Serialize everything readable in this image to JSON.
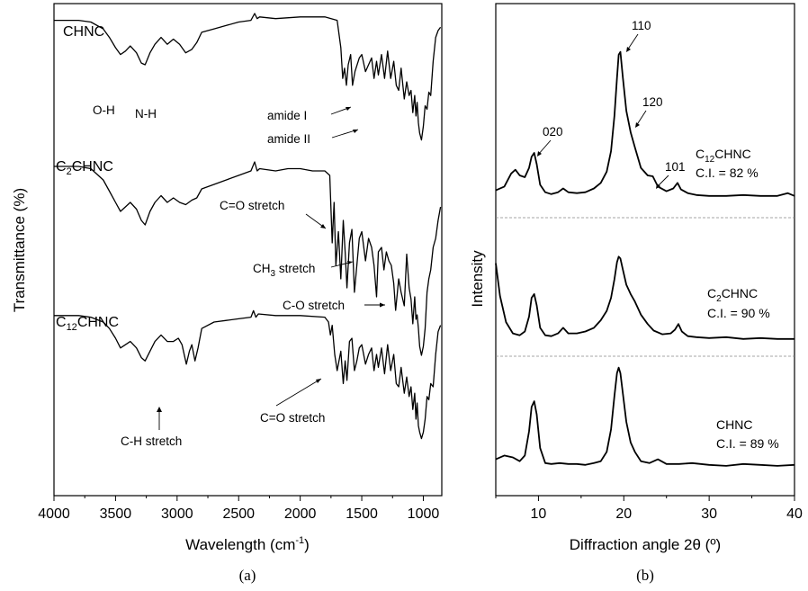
{
  "figure": {
    "panel_a": "(a)",
    "panel_b": "(b)"
  },
  "chart_data": [
    {
      "type": "line",
      "panel": "(a)",
      "xlabel": "Wavelength (cm",
      "xlabel_sup": "-1",
      "xlabel_end": ")",
      "ylabel": "Transmittance (%)",
      "xlim": [
        4000,
        850
      ],
      "x_reversed": true,
      "xticks": [
        "4000",
        "3500",
        "3000",
        "2500",
        "2000",
        "1500",
        "1000"
      ],
      "xtick_values": [
        4000,
        3500,
        3000,
        2500,
        2000,
        1500,
        1000
      ],
      "y_ticks_shown": false,
      "series": [
        {
          "name": "CHNC",
          "name_main": "CHNC",
          "name_sub": "",
          "name_rest": "",
          "x": [
            4000,
            3800,
            3700,
            3600,
            3550,
            3500,
            3460,
            3420,
            3380,
            3330,
            3290,
            3260,
            3220,
            3180,
            3130,
            3080,
            3030,
            2980,
            2930,
            2880,
            2840,
            2800,
            2700,
            2600,
            2500,
            2400,
            2370,
            2350,
            2330,
            2200,
            2000,
            1800,
            1700,
            1670,
            1655,
            1640,
            1625,
            1610,
            1590,
            1575,
            1555,
            1520,
            1500,
            1470,
            1445,
            1420,
            1400,
            1380,
            1365,
            1340,
            1315,
            1290,
            1265,
            1240,
            1220,
            1200,
            1180,
            1155,
            1135,
            1115,
            1100,
            1085,
            1070,
            1060,
            1050,
            1040,
            1030,
            1015,
            1000,
            985,
            970,
            955,
            940,
            920,
            900,
            880,
            860
          ],
          "y": [
            96,
            96,
            95,
            91,
            86,
            80,
            76,
            78,
            81,
            77,
            71,
            70,
            77,
            82,
            86,
            82,
            85,
            82,
            77,
            79,
            83,
            89,
            91,
            93,
            95,
            96,
            100,
            97,
            98,
            97,
            98,
            98,
            96,
            80,
            62,
            68,
            58,
            70,
            76,
            58,
            66,
            74,
            76,
            66,
            70,
            74,
            62,
            72,
            64,
            76,
            62,
            78,
            62,
            72,
            58,
            55,
            68,
            50,
            60,
            52,
            55,
            42,
            52,
            40,
            48,
            36,
            30,
            26,
            34,
            46,
            44,
            54,
            52,
            72,
            86,
            90,
            92
          ]
        },
        {
          "name": "C2CHNC",
          "name_main": "C",
          "name_sub": "2",
          "name_rest": "CHNC",
          "x": [
            4000,
            3800,
            3700,
            3600,
            3550,
            3500,
            3460,
            3420,
            3380,
            3330,
            3290,
            3260,
            3220,
            3180,
            3130,
            3080,
            3030,
            2980,
            2930,
            2880,
            2840,
            2800,
            2700,
            2600,
            2500,
            2400,
            2370,
            2350,
            2330,
            2200,
            2100,
            2000,
            1900,
            1800,
            1760,
            1740,
            1725,
            1710,
            1690,
            1670,
            1650,
            1635,
            1620,
            1600,
            1580,
            1560,
            1540,
            1520,
            1500,
            1470,
            1445,
            1420,
            1400,
            1380,
            1365,
            1340,
            1320,
            1300,
            1280,
            1260,
            1240,
            1225,
            1200,
            1180,
            1155,
            1135,
            1115,
            1100,
            1085,
            1070,
            1060,
            1050,
            1040,
            1030,
            1015,
            1000,
            985,
            970,
            955,
            940,
            920,
            900,
            880,
            860
          ],
          "y": [
            94,
            94,
            93,
            88,
            83,
            78,
            74,
            76,
            78,
            75,
            70,
            68,
            74,
            78,
            81,
            78,
            80,
            78,
            77,
            79,
            80,
            84,
            86,
            88,
            90,
            92,
            96,
            92,
            93,
            92,
            93,
            93,
            92,
            92,
            90,
            60,
            78,
            50,
            65,
            44,
            70,
            56,
            40,
            60,
            66,
            38,
            50,
            62,
            65,
            52,
            62,
            58,
            50,
            36,
            56,
            58,
            48,
            56,
            52,
            50,
            42,
            30,
            44,
            38,
            32,
            55,
            40,
            35,
            24,
            36,
            26,
            28,
            22,
            14,
            10,
            14,
            22,
            38,
            44,
            48,
            58,
            62,
            70,
            76
          ]
        },
        {
          "name": "C12CHNC",
          "name_main": "C",
          "name_sub": "12",
          "name_rest": "CHNC",
          "x": [
            4000,
            3800,
            3700,
            3600,
            3550,
            3500,
            3460,
            3420,
            3380,
            3330,
            3290,
            3260,
            3220,
            3180,
            3130,
            3080,
            3030,
            2990,
            2960,
            2925,
            2900,
            2880,
            2855,
            2830,
            2800,
            2700,
            2600,
            2500,
            2400,
            2380,
            2360,
            2340,
            2200,
            2000,
            1800,
            1770,
            1755,
            1740,
            1720,
            1700,
            1670,
            1650,
            1635,
            1620,
            1600,
            1580,
            1560,
            1540,
            1520,
            1500,
            1470,
            1445,
            1420,
            1400,
            1380,
            1365,
            1340,
            1315,
            1290,
            1265,
            1240,
            1220,
            1200,
            1180,
            1155,
            1135,
            1115,
            1100,
            1085,
            1070,
            1060,
            1050,
            1040,
            1030,
            1015,
            1000,
            985,
            970,
            955,
            940,
            920,
            900,
            880,
            860
          ],
          "y": [
            94,
            94,
            93,
            90,
            86,
            80,
            74,
            76,
            78,
            74,
            68,
            66,
            72,
            78,
            82,
            78,
            78,
            80,
            76,
            64,
            72,
            76,
            66,
            74,
            86,
            90,
            91,
            92,
            93,
            97,
            93,
            95,
            94,
            94,
            93,
            90,
            82,
            88,
            70,
            60,
            72,
            52,
            66,
            54,
            78,
            80,
            60,
            66,
            74,
            76,
            64,
            70,
            74,
            60,
            70,
            62,
            74,
            58,
            76,
            60,
            70,
            52,
            50,
            62,
            46,
            56,
            44,
            50,
            36,
            46,
            30,
            40,
            26,
            22,
            18,
            22,
            30,
            44,
            42,
            52,
            50,
            70,
            84,
            88
          ]
        }
      ],
      "peak_labels": [
        "O-H",
        "N-H",
        "amide I",
        "amide II",
        "C=O stretch",
        "CH",
        "3",
        " stretch",
        "C-O stretch",
        "C=O stretch",
        "C-H stretch"
      ]
    },
    {
      "type": "line",
      "panel": "(b)",
      "xlabel": "Diffraction angle 2θ (º)",
      "ylabel": "Intensity",
      "xlim": [
        5,
        40
      ],
      "xticks": [
        "10",
        "20",
        "30",
        "40"
      ],
      "xtick_values": [
        10,
        20,
        30,
        40
      ],
      "y_ticks_shown": false,
      "reflections": [
        "020",
        "110",
        "120",
        "101"
      ],
      "series": [
        {
          "name": "C12CHNC",
          "name_main": "C",
          "name_sub": "12",
          "name_rest": "CHNC",
          "ci_label": "C.I. = 82 %",
          "x": [
            5,
            6,
            6.8,
            7.3,
            7.8,
            8.4,
            8.9,
            9.2,
            9.5,
            9.8,
            10.2,
            10.8,
            11.5,
            12.3,
            12.9,
            13.5,
            14.5,
            15.5,
            16.5,
            17.3,
            18.0,
            18.5,
            18.9,
            19.2,
            19.4,
            19.6,
            19.9,
            20.3,
            20.8,
            21.3,
            22.0,
            22.8,
            23.4,
            24.0,
            25.0,
            25.8,
            26.3,
            26.7,
            27.5,
            28.5,
            30,
            32,
            34,
            36,
            38,
            39.2,
            40
          ],
          "y": [
            0.1,
            0.14,
            0.28,
            0.32,
            0.26,
            0.24,
            0.34,
            0.46,
            0.5,
            0.38,
            0.16,
            0.08,
            0.06,
            0.08,
            0.12,
            0.08,
            0.07,
            0.08,
            0.12,
            0.18,
            0.3,
            0.52,
            0.9,
            1.3,
            1.55,
            1.58,
            1.3,
            0.95,
            0.72,
            0.56,
            0.34,
            0.26,
            0.25,
            0.14,
            0.09,
            0.12,
            0.18,
            0.11,
            0.07,
            0.05,
            0.04,
            0.04,
            0.05,
            0.04,
            0.04,
            0.07,
            0.04
          ]
        },
        {
          "name": "C2CHNC",
          "name_main": "C",
          "name_sub": "2",
          "name_rest": "CHNC",
          "ci_label": "C.I. = 90 %",
          "x": [
            5,
            5.5,
            6.2,
            7.0,
            7.8,
            8.4,
            8.9,
            9.2,
            9.5,
            9.8,
            10.2,
            10.8,
            11.5,
            12.3,
            12.9,
            13.5,
            14.5,
            15.5,
            16.5,
            17.3,
            18.0,
            18.5,
            18.9,
            19.2,
            19.4,
            19.6,
            19.9,
            20.3,
            20.8,
            21.3,
            22.0,
            22.8,
            23.5,
            24.5,
            25.5,
            26.0,
            26.4,
            26.8,
            27.5,
            28.5,
            30,
            32,
            34,
            36,
            38,
            40
          ],
          "y": [
            0.85,
            0.5,
            0.22,
            0.1,
            0.08,
            0.12,
            0.28,
            0.48,
            0.52,
            0.4,
            0.16,
            0.08,
            0.07,
            0.1,
            0.16,
            0.1,
            0.1,
            0.12,
            0.16,
            0.24,
            0.34,
            0.48,
            0.68,
            0.86,
            0.92,
            0.9,
            0.78,
            0.62,
            0.52,
            0.44,
            0.3,
            0.2,
            0.13,
            0.09,
            0.1,
            0.14,
            0.2,
            0.12,
            0.07,
            0.06,
            0.05,
            0.06,
            0.04,
            0.05,
            0.04,
            0.04
          ]
        },
        {
          "name": "CHNC",
          "name_main": "CHNC",
          "name_sub": "",
          "name_rest": "",
          "ci_label": "C.I. = 89 %",
          "x": [
            5,
            6,
            7,
            7.8,
            8.4,
            8.9,
            9.2,
            9.5,
            9.8,
            10.2,
            10.8,
            11.5,
            12.5,
            13.5,
            14.5,
            15.5,
            16.5,
            17.3,
            18.0,
            18.5,
            18.9,
            19.2,
            19.4,
            19.6,
            19.9,
            20.3,
            20.8,
            21.3,
            22.0,
            23.0,
            24.0,
            25.0,
            26.5,
            28,
            30,
            32,
            34,
            36,
            38,
            40
          ],
          "y": [
            0.1,
            0.14,
            0.12,
            0.08,
            0.14,
            0.4,
            0.66,
            0.72,
            0.58,
            0.22,
            0.06,
            0.05,
            0.06,
            0.05,
            0.05,
            0.04,
            0.06,
            0.08,
            0.18,
            0.42,
            0.78,
            1.02,
            1.08,
            1.02,
            0.8,
            0.5,
            0.28,
            0.18,
            0.08,
            0.06,
            0.1,
            0.05,
            0.05,
            0.06,
            0.04,
            0.03,
            0.05,
            0.04,
            0.03,
            0.04
          ]
        }
      ]
    }
  ]
}
